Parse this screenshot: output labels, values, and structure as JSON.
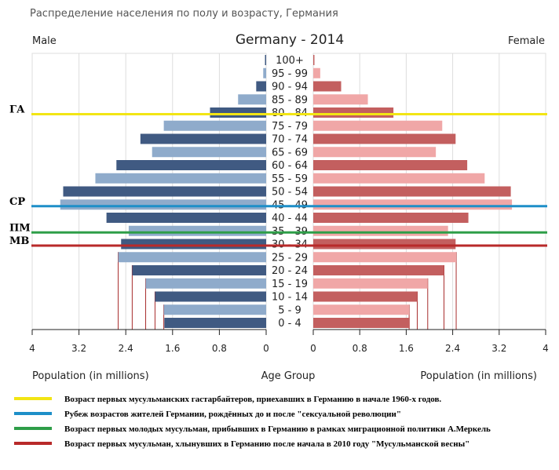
{
  "page_title": "Распределение населения по полу и возрасту, Германия",
  "chart_data": {
    "type": "bar",
    "title": "Germany - 2014",
    "left_label": "Male",
    "right_label": "Female",
    "xlabel_left": "Population (in millions)",
    "xlabel_center": "Age Group",
    "xlabel_right": "Population (in millions)",
    "xlim": [
      0,
      4
    ],
    "ticks_left": [
      "4",
      "3.2",
      "2.4",
      "1.6",
      "0.8",
      "0"
    ],
    "ticks_right": [
      "0",
      "0.8",
      "1.6",
      "2.4",
      "3.2",
      "4"
    ],
    "tick_values": [
      0,
      0.8,
      1.6,
      2.4,
      3.2,
      4
    ],
    "categories": [
      "100+",
      "95 - 99",
      "90 - 94",
      "85 - 89",
      "80 - 84",
      "75 - 79",
      "70 - 74",
      "65 - 69",
      "60 - 64",
      "55 - 59",
      "50 - 54",
      "45 - 49",
      "40 - 44",
      "35 - 39",
      "30 - 34",
      "25 - 29",
      "20 - 24",
      "15 - 19",
      "10 - 14",
      "5 - 9",
      "0 - 4"
    ],
    "male": [
      0.02,
      0.05,
      0.17,
      0.48,
      0.96,
      1.75,
      2.15,
      1.95,
      2.56,
      2.92,
      3.47,
      3.52,
      2.73,
      2.35,
      2.48,
      2.53,
      2.29,
      2.06,
      1.9,
      1.75,
      1.74
    ],
    "female": [
      0.02,
      0.12,
      0.48,
      0.94,
      1.38,
      2.22,
      2.45,
      2.11,
      2.65,
      2.95,
      3.4,
      3.42,
      2.67,
      2.32,
      2.45,
      2.46,
      2.25,
      1.97,
      1.79,
      1.65,
      1.66
    ],
    "colors": {
      "male_dark": "#405a82",
      "male_light": "#8fabcb",
      "female_dark": "#c35f5f",
      "female_light": "#f0a7a7",
      "grid": "#dddddd",
      "drop_line": "#a82d2d"
    },
    "drop_line_categories": [
      "25 - 29",
      "20 - 24",
      "15 - 19",
      "10 - 14",
      "5 - 9"
    ]
  },
  "markers": [
    {
      "label": "ГА",
      "age_group": "80 - 84",
      "color": "#f2e514",
      "legend": "Возраст первых мусульманских гастарбайтеров, приехавших в Германию в начале 1960-х годов."
    },
    {
      "label": "СР",
      "age_group": "45 - 49",
      "color": "#1e8fc8",
      "legend": "Рубеж возрастов жителей Германии, рождённых до и после \"сексуальной революции\""
    },
    {
      "label": "ПМ",
      "age_group": "35 - 39",
      "color": "#2e9e48",
      "legend": "Возраст первых молодых мусульман, прибывших в Германию в рамках миграционной политики А.Меркель"
    },
    {
      "label": "МВ",
      "age_group": "30 - 34",
      "color": "#b82a2a",
      "legend": "Возраст первых мусульман, хлынувших в Германию после начала в 2010 году \"Мусульманской весны\""
    }
  ]
}
